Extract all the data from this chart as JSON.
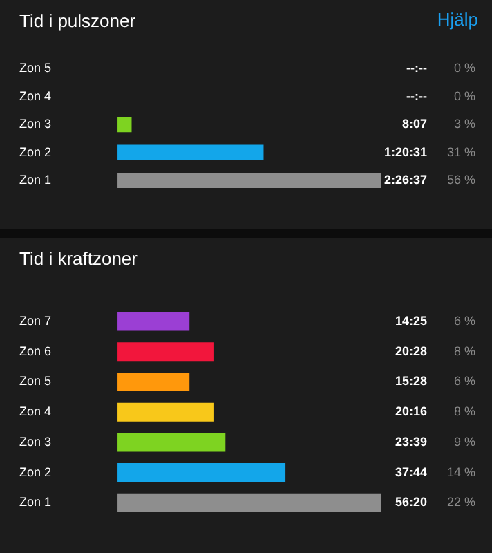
{
  "chart_data": [
    {
      "type": "bar",
      "orientation": "horizontal",
      "title": "Tid i pulszoner",
      "categories": [
        "Zon 5",
        "Zon 4",
        "Zon 3",
        "Zon 2",
        "Zon 1"
      ],
      "values": [
        0,
        0,
        3,
        31,
        56
      ],
      "colors": [
        "#888888",
        "#888888",
        "#7ed321",
        "#13a6ea",
        "#8e8e8e"
      ],
      "value_labels": [
        "0 %",
        "0 %",
        "3 %",
        "31 %",
        "56 %"
      ],
      "annotations": [
        "Hjälp",
        "--:--",
        "--:--",
        "8:07",
        "1:20:31",
        "2:26:37"
      ],
      "legend": false
    },
    {
      "type": "bar",
      "orientation": "horizontal",
      "title": "Tid i kraftzoner",
      "categories": [
        "Zon 7",
        "Zon 6",
        "Zon 5",
        "Zon 4",
        "Zon 3",
        "Zon 2",
        "Zon 1"
      ],
      "values": [
        6,
        8,
        6,
        8,
        9,
        14,
        22
      ],
      "colors": [
        "#9b3fd4",
        "#f2163c",
        "#ff980c",
        "#f8c81a",
        "#7ed321",
        "#13a6ea",
        "#8e8e8e"
      ],
      "value_labels": [
        "6 %",
        "8 %",
        "6 %",
        "8 %",
        "9 %",
        "14 %",
        "22 %"
      ],
      "annotations": [
        "14:25",
        "20:28",
        "15:28",
        "20:16",
        "23:39",
        "37:44",
        "56:20"
      ],
      "legend": false
    }
  ]
}
